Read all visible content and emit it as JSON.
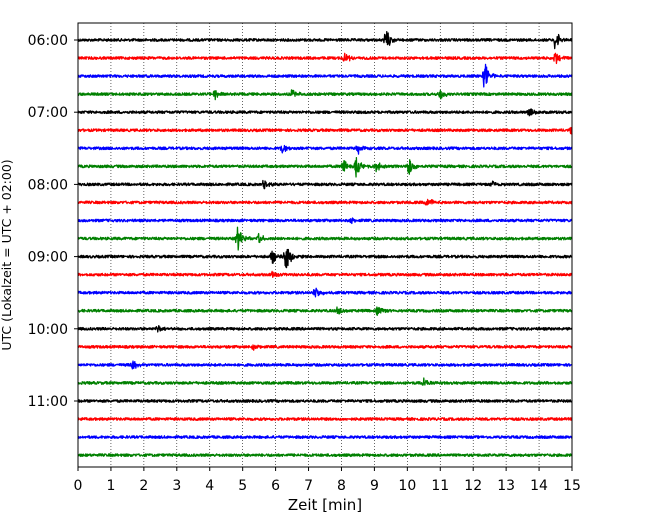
{
  "chart_data": {
    "type": "line",
    "title": "",
    "xlabel": "Zeit  [min]",
    "ylabel": "UTC (Lokalzeit = UTC + 02:00)",
    "xlim": [
      0,
      15
    ],
    "x_ticks": [
      "0",
      "1",
      "2",
      "3",
      "4",
      "5",
      "6",
      "7",
      "8",
      "9",
      "10",
      "11",
      "12",
      "13",
      "14",
      "15"
    ],
    "y_tick_labels": [
      "06:00",
      "07:00",
      "08:00",
      "09:00",
      "10:00",
      "11:00"
    ],
    "grid": {
      "vertical": true,
      "style": "dotted"
    },
    "series_colors": [
      "#000000",
      "#ff0000",
      "#0000ff",
      "#008000"
    ],
    "traces": [
      {
        "start": "06:00",
        "color": "#000000",
        "events": [
          {
            "x": 9.35,
            "amp": 1.0
          },
          {
            "x": 14.5,
            "amp": 1.0
          }
        ]
      },
      {
        "start": "06:15",
        "color": "#ff0000",
        "events": [
          {
            "x": 8.1,
            "amp": 0.5
          },
          {
            "x": 14.5,
            "amp": 0.6
          }
        ]
      },
      {
        "start": "06:30",
        "color": "#0000ff",
        "events": [
          {
            "x": 12.35,
            "amp": 1.4
          }
        ]
      },
      {
        "start": "06:45",
        "color": "#008000",
        "events": [
          {
            "x": 4.15,
            "amp": 0.6
          },
          {
            "x": 6.5,
            "amp": 0.4
          },
          {
            "x": 11.0,
            "amp": 0.5
          }
        ]
      },
      {
        "start": "07:00",
        "color": "#000000",
        "events": [
          {
            "x": 13.7,
            "amp": 0.5
          }
        ]
      },
      {
        "start": "07:15",
        "color": "#ff0000",
        "events": [
          {
            "x": 15.0,
            "amp": 0.6
          }
        ]
      },
      {
        "start": "07:30",
        "color": "#0000ff",
        "events": [
          {
            "x": 6.2,
            "amp": 0.5
          },
          {
            "x": 8.5,
            "amp": 0.6
          }
        ]
      },
      {
        "start": "07:45",
        "color": "#008000",
        "events": [
          {
            "x": 8.05,
            "amp": 0.8
          },
          {
            "x": 8.45,
            "amp": 1.0
          },
          {
            "x": 9.05,
            "amp": 0.6
          },
          {
            "x": 10.05,
            "amp": 0.9
          }
        ]
      },
      {
        "start": "08:00",
        "color": "#000000",
        "events": [
          {
            "x": 5.65,
            "amp": 0.5
          },
          {
            "x": 12.6,
            "amp": 0.3
          }
        ]
      },
      {
        "start": "08:15",
        "color": "#ff0000",
        "events": [
          {
            "x": 10.6,
            "amp": 0.5
          }
        ]
      },
      {
        "start": "08:30",
        "color": "#0000ff",
        "events": [
          {
            "x": 8.3,
            "amp": 0.3
          }
        ]
      },
      {
        "start": "08:45",
        "color": "#008000",
        "events": [
          {
            "x": 4.85,
            "amp": 1.2
          },
          {
            "x": 5.5,
            "amp": 0.5
          }
        ]
      },
      {
        "start": "09:00",
        "color": "#000000",
        "events": [
          {
            "x": 6.3,
            "amp": 1.5
          },
          {
            "x": 5.9,
            "amp": 0.6
          }
        ]
      },
      {
        "start": "09:15",
        "color": "#ff0000",
        "events": [
          {
            "x": 5.9,
            "amp": 0.4
          }
        ]
      },
      {
        "start": "09:30",
        "color": "#0000ff",
        "events": [
          {
            "x": 7.2,
            "amp": 0.7
          }
        ]
      },
      {
        "start": "09:45",
        "color": "#008000",
        "events": [
          {
            "x": 7.9,
            "amp": 0.5
          },
          {
            "x": 9.1,
            "amp": 0.4
          }
        ]
      },
      {
        "start": "10:00",
        "color": "#000000",
        "events": [
          {
            "x": 2.4,
            "amp": 0.4
          }
        ]
      },
      {
        "start": "10:15",
        "color": "#ff0000",
        "events": [
          {
            "x": 5.3,
            "amp": 0.3
          }
        ]
      },
      {
        "start": "10:30",
        "color": "#0000ff",
        "events": [
          {
            "x": 1.65,
            "amp": 0.5
          }
        ]
      },
      {
        "start": "10:45",
        "color": "#008000",
        "events": [
          {
            "x": 10.5,
            "amp": 0.5
          }
        ]
      },
      {
        "start": "11:00",
        "color": "#000000",
        "events": []
      },
      {
        "start": "11:15",
        "color": "#ff0000",
        "events": []
      },
      {
        "start": "11:30",
        "color": "#0000ff",
        "events": []
      },
      {
        "start": "11:45",
        "color": "#008000",
        "events": []
      }
    ]
  }
}
